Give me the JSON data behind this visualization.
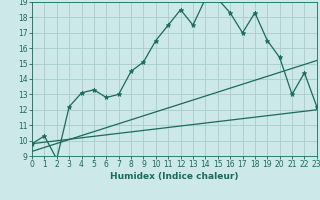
{
  "title": "",
  "xlabel": "Humidex (Indice chaleur)",
  "bg_color": "#cce8e8",
  "grid_color": "#aacccc",
  "line_color": "#1a6b5a",
  "xmin": 0,
  "xmax": 23,
  "ymin": 9,
  "ymax": 19,
  "series1_x": [
    0,
    1,
    2,
    3,
    4,
    5,
    6,
    7,
    8,
    9,
    10,
    11,
    12,
    13,
    14,
    15,
    16,
    17,
    18,
    19,
    20,
    21,
    22,
    23
  ],
  "series1_y": [
    9.8,
    10.3,
    8.8,
    12.2,
    13.1,
    13.3,
    12.8,
    13.0,
    14.5,
    15.1,
    16.5,
    17.5,
    18.5,
    17.5,
    19.2,
    19.2,
    18.3,
    17.0,
    18.3,
    16.5,
    15.4,
    13.0,
    14.4,
    12.2
  ],
  "series2_x": [
    0,
    23
  ],
  "series2_y": [
    9.8,
    12.0
  ],
  "series3_x": [
    0,
    23
  ],
  "series3_y": [
    9.3,
    15.2
  ]
}
